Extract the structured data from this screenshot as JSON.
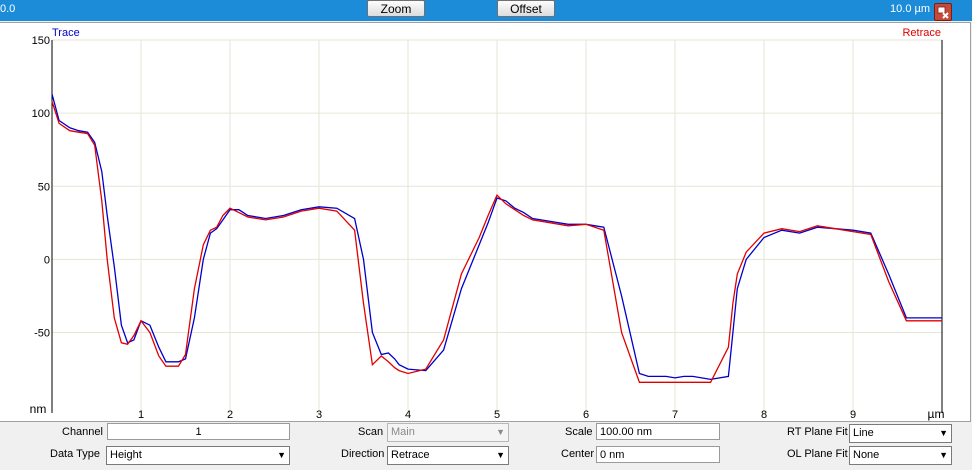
{
  "toolbar": {
    "left_value": "0.0",
    "zoom_label": "Zoom",
    "offset_label": "Offset",
    "right_value": "10.0 µm"
  },
  "chart_data": {
    "type": "line",
    "xlabel": "µm",
    "ylabel": "nm",
    "xlim": [
      0,
      10
    ],
    "ylim": [
      -105,
      150
    ],
    "x_ticks": [
      "1",
      "2",
      "3",
      "4",
      "5",
      "6",
      "7",
      "8",
      "9"
    ],
    "y_ticks": [
      "150",
      "100",
      "50",
      "0",
      "-50"
    ],
    "grid": true,
    "series": [
      {
        "name": "Trace",
        "color": "#0000cc",
        "x": [
          0,
          0.08,
          0.2,
          0.3,
          0.4,
          0.48,
          0.56,
          0.62,
          0.7,
          0.78,
          0.85,
          0.92,
          1.0,
          1.1,
          1.2,
          1.28,
          1.35,
          1.42,
          1.5,
          1.6,
          1.7,
          1.78,
          1.85,
          1.92,
          2.0,
          2.1,
          2.2,
          2.4,
          2.6,
          2.8,
          3.0,
          3.2,
          3.4,
          3.5,
          3.6,
          3.7,
          3.78,
          3.85,
          3.9,
          4.0,
          4.2,
          4.4,
          4.6,
          4.8,
          4.9,
          5.0,
          5.1,
          5.2,
          5.3,
          5.4,
          5.6,
          5.8,
          6.0,
          6.2,
          6.4,
          6.6,
          6.7,
          6.8,
          6.9,
          7.0,
          7.1,
          7.2,
          7.4,
          7.6,
          7.65,
          7.7,
          7.8,
          8.0,
          8.2,
          8.4,
          8.6,
          8.8,
          9.0,
          9.2,
          9.4,
          9.6,
          9.8,
          10.0
        ],
        "y": [
          113,
          95,
          90,
          88,
          87,
          80,
          60,
          30,
          -5,
          -45,
          -57,
          -55,
          -42,
          -45,
          -60,
          -70,
          -70,
          -70,
          -68,
          -40,
          0,
          18,
          21,
          27,
          34,
          34,
          30,
          28,
          30,
          34,
          36,
          35,
          28,
          0,
          -50,
          -65,
          -64,
          -68,
          -72,
          -75,
          -76,
          -62,
          -20,
          10,
          25,
          42,
          40,
          35,
          32,
          28,
          26,
          24,
          24,
          22,
          -25,
          -78,
          -80,
          -80,
          -80,
          -81,
          -80,
          -80,
          -82,
          -80,
          -50,
          -20,
          0,
          15,
          20,
          18,
          22,
          21,
          20,
          18,
          -10,
          -40,
          -40,
          -40
        ]
      },
      {
        "name": "Retrace",
        "color": "#e00000",
        "x": [
          0,
          0.08,
          0.2,
          0.3,
          0.4,
          0.48,
          0.56,
          0.62,
          0.7,
          0.78,
          0.85,
          0.92,
          1.0,
          1.1,
          1.2,
          1.28,
          1.35,
          1.42,
          1.5,
          1.6,
          1.7,
          1.78,
          1.85,
          1.92,
          2.0,
          2.1,
          2.2,
          2.4,
          2.6,
          2.8,
          3.0,
          3.2,
          3.4,
          3.5,
          3.6,
          3.7,
          3.78,
          3.85,
          3.9,
          4.0,
          4.2,
          4.4,
          4.6,
          4.8,
          4.9,
          5.0,
          5.1,
          5.2,
          5.3,
          5.4,
          5.6,
          5.8,
          6.0,
          6.2,
          6.4,
          6.6,
          6.7,
          6.8,
          6.9,
          7.0,
          7.1,
          7.2,
          7.4,
          7.6,
          7.65,
          7.7,
          7.8,
          8.0,
          8.2,
          8.4,
          8.6,
          8.8,
          9.0,
          9.2,
          9.4,
          9.6,
          9.8,
          10.0
        ],
        "y": [
          108,
          93,
          88,
          87,
          86,
          78,
          40,
          0,
          -40,
          -57,
          -58,
          -52,
          -42,
          -50,
          -66,
          -73,
          -73,
          -73,
          -65,
          -20,
          10,
          20,
          22,
          30,
          35,
          32,
          29,
          27,
          29,
          33,
          35,
          33,
          20,
          -30,
          -72,
          -66,
          -70,
          -74,
          -76,
          -78,
          -75,
          -55,
          -10,
          15,
          30,
          44,
          38,
          34,
          30,
          27,
          25,
          23,
          24,
          20,
          -50,
          -84,
          -84,
          -84,
          -84,
          -84,
          -84,
          -84,
          -84,
          -60,
          -30,
          -10,
          5,
          18,
          21,
          19,
          23,
          21,
          19,
          17,
          -15,
          -42,
          -42,
          -42
        ]
      }
    ]
  },
  "controls": {
    "channel_label": "Channel",
    "channel_value": "1",
    "datatype_label": "Data Type",
    "datatype_value": "Height",
    "scan_label": "Scan",
    "scan_value": "Main",
    "direction_label": "Direction",
    "direction_value": "Retrace",
    "scale_label": "Scale",
    "scale_value": "100.00 nm",
    "center_label": "Center",
    "center_value": "0 nm",
    "rtfit_label": "RT Plane Fit",
    "rtfit_value": "Line",
    "olfit_label": "OL Plane Fit",
    "olfit_value": "None"
  }
}
